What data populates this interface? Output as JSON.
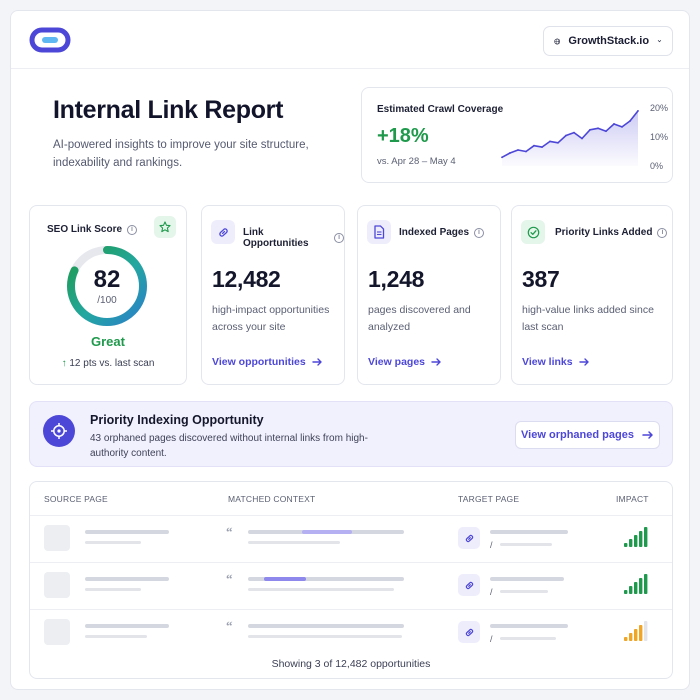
{
  "header": {
    "logo_icon": "link-logo-icon",
    "site_name": "GrowthStack.io",
    "globe_icon": "globe-icon",
    "chevron_icon": "chevron-down-icon"
  },
  "hero": {
    "title": "Internal Link Report",
    "subtitle": "AI-powered insights to improve your site structure, indexability and rankings."
  },
  "crawl": {
    "label": "Estimated Crawl Coverage",
    "value": "+18%",
    "range": "vs. Apr 28 – May 4",
    "y_ticks": [
      "20%",
      "10%",
      "0%"
    ]
  },
  "chart_data": {
    "type": "area",
    "title": "Estimated Crawl Coverage",
    "ylim": [
      0,
      20
    ],
    "y_ticks": [
      "20%",
      "10%",
      "0%"
    ],
    "values": [
      3,
      4.5,
      5.5,
      5,
      7,
      6.5,
      8.5,
      8,
      10.5,
      11.5,
      9.5,
      12.5,
      13,
      12,
      14.5,
      13.5,
      15.5,
      19
    ]
  },
  "score": {
    "title": "SEO Link Score",
    "value": "82",
    "denominator": "/100",
    "value_pct": 82,
    "rating": "Great",
    "delta": "12 pts vs. last scan"
  },
  "cards": [
    {
      "title": "Link Opportunities",
      "value": "12,482",
      "desc": "high-impact opportunities across your site",
      "link": "View opportunities",
      "icon": "link-icon"
    },
    {
      "title": "Indexed Pages",
      "value": "1,248",
      "desc": "pages discovered and analyzed",
      "link": "View pages",
      "icon": "document-icon"
    },
    {
      "title": "Priority Links Added",
      "value": "387",
      "desc": "high-value links added since last scan",
      "link": "View links",
      "icon": "check-circle-icon"
    }
  ],
  "banner": {
    "title": "Priority Indexing Opportunity",
    "desc": "43 orphaned pages discovered without internal links from high-authority content.",
    "button": "View orphaned pages"
  },
  "table": {
    "columns": [
      "SOURCE PAGE",
      "MATCHED CONTEXT",
      "TARGET PAGE",
      "IMPACT"
    ],
    "rows": [
      {
        "impact_level": 5,
        "impact_color": "#1f9a4c"
      },
      {
        "impact_level": 5,
        "impact_color": "#1f9a4c"
      },
      {
        "impact_level": 4,
        "impact_color": "#f0a524"
      }
    ],
    "target_prefix": "/",
    "footer": "Showing 3 of 12,482 opportunities"
  },
  "colors": {
    "accent": "#4d47d8",
    "success": "#1f9a4c",
    "warning": "#f0a524"
  }
}
